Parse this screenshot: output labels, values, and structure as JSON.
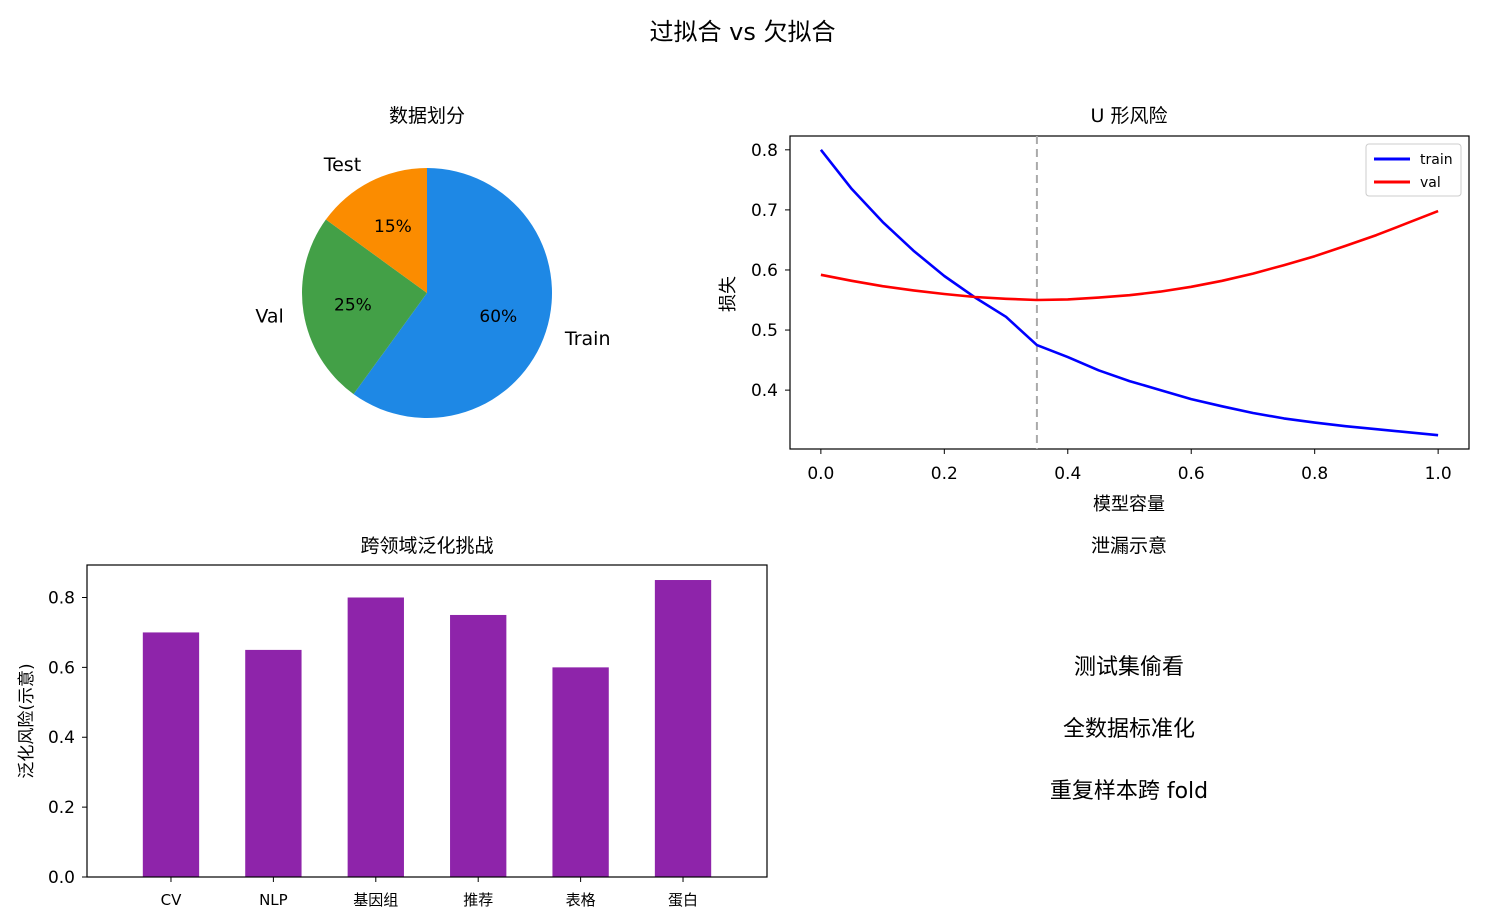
{
  "figure": {
    "title": "过拟合 vs 欠拟合"
  },
  "chart_data": [
    {
      "id": "pie",
      "type": "pie",
      "title": "数据划分",
      "labels": [
        "Train",
        "Val",
        "Test"
      ],
      "values": [
        60,
        25,
        15
      ],
      "value_labels": [
        "60%",
        "25%",
        "15%"
      ],
      "colors": [
        "#1e88e5",
        "#43a047",
        "#fb8c00"
      ]
    },
    {
      "id": "line",
      "type": "line",
      "title": "U 形风险",
      "xlabel": "模型容量",
      "ylabel": "损失",
      "xlim": [
        -0.05,
        1.05
      ],
      "ylim": [
        0.302,
        0.823
      ],
      "xticks": [
        0.0,
        0.2,
        0.4,
        0.6,
        0.8,
        1.0
      ],
      "xtick_labels": [
        "0.0",
        "0.2",
        "0.4",
        "0.6",
        "0.8",
        "1.0"
      ],
      "yticks": [
        0.4,
        0.5,
        0.6,
        0.7,
        0.8
      ],
      "ytick_labels": [
        "0.4",
        "0.5",
        "0.6",
        "0.7",
        "0.8"
      ],
      "legend_position": "upper-right",
      "vline": {
        "x": 0.35,
        "color": "#aaaaaa",
        "style": "dashed"
      },
      "x": [
        0.0,
        0.05,
        0.1,
        0.15,
        0.2,
        0.25,
        0.3,
        0.35,
        0.4,
        0.45,
        0.5,
        0.55,
        0.6,
        0.65,
        0.7,
        0.75,
        0.8,
        0.85,
        0.9,
        0.95,
        1.0
      ],
      "series": [
        {
          "name": "train",
          "color": "#0000ff",
          "values": [
            0.8,
            0.735,
            0.68,
            0.632,
            0.59,
            0.554,
            0.522,
            0.475,
            0.455,
            0.433,
            0.415,
            0.4,
            0.385,
            0.373,
            0.362,
            0.353,
            0.346,
            0.34,
            0.335,
            0.33,
            0.325
          ]
        },
        {
          "name": "val",
          "color": "#ff0000",
          "values": [
            0.592,
            0.582,
            0.573,
            0.566,
            0.56,
            0.555,
            0.552,
            0.55,
            0.551,
            0.554,
            0.558,
            0.564,
            0.572,
            0.582,
            0.594,
            0.608,
            0.623,
            0.64,
            0.658,
            0.678,
            0.698
          ]
        }
      ]
    },
    {
      "id": "bar",
      "type": "bar",
      "title": "跨领域泛化挑战",
      "ylabel": "泛化风险(示意)",
      "categories": [
        "CV",
        "NLP",
        "基因组",
        "推荐",
        "表格",
        "蛋白"
      ],
      "values": [
        0.7,
        0.65,
        0.8,
        0.75,
        0.6,
        0.85
      ],
      "color": "#8e24aa",
      "ylim": [
        0,
        0.893
      ],
      "yticks": [
        0.0,
        0.2,
        0.4,
        0.6,
        0.8
      ],
      "ytick_labels": [
        "0.0",
        "0.2",
        "0.4",
        "0.6",
        "0.8"
      ]
    }
  ],
  "leak_panel": {
    "title": "泄漏示意",
    "color": "#c62828",
    "items": [
      "测试集偷看",
      "全数据标准化",
      "重复样本跨 fold"
    ]
  }
}
